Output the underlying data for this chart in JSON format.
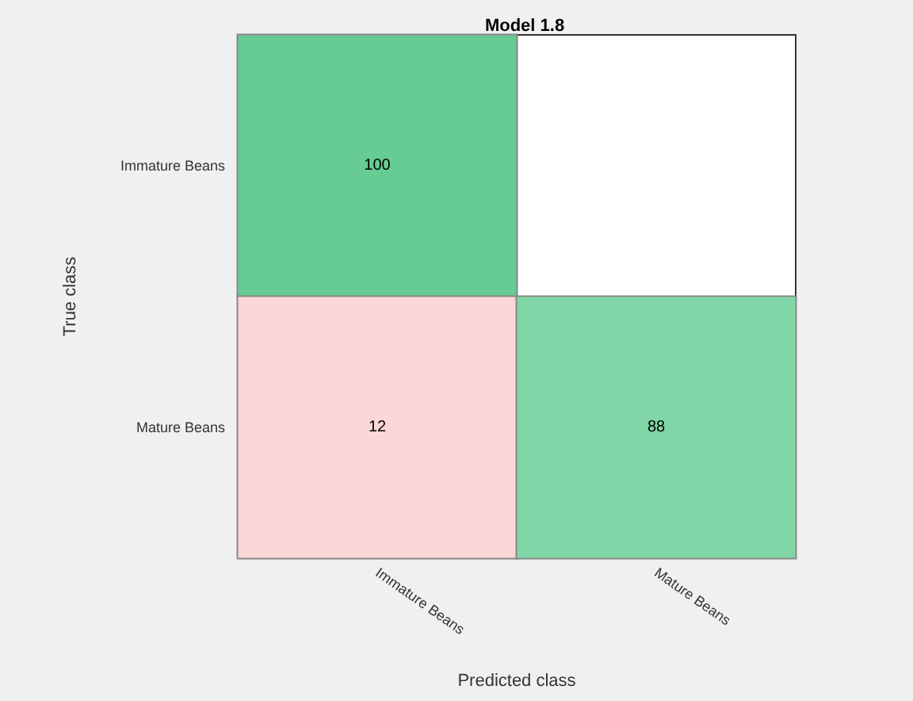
{
  "chart_data": {
    "type": "heatmap",
    "title": "Model 1.8",
    "xlabel": "Predicted class",
    "ylabel": "True class",
    "categories": [
      "Immature Beans",
      "Mature Beans"
    ],
    "y_categories": [
      "Immature Beans",
      "Mature Beans"
    ],
    "cells": [
      [
        100,
        null
      ],
      [
        12,
        88
      ]
    ],
    "colors": [
      "#66cc94",
      "#fdd7d7",
      "#80d6a6"
    ],
    "data_labels": true
  }
}
